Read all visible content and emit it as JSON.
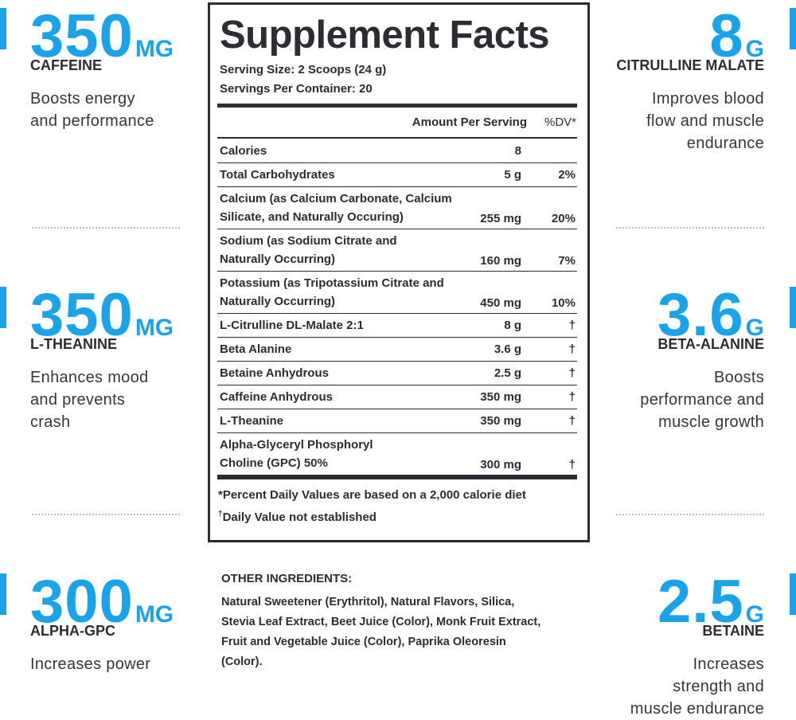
{
  "left_features": [
    {
      "amount": "350",
      "unit": "MG",
      "name": "CAFFEINE",
      "description": [
        "Boosts energy",
        "and performance"
      ]
    },
    {
      "amount": "350",
      "unit": "MG",
      "name": "L-THEANINE",
      "description": [
        "Enhances mood",
        "and prevents",
        "crash"
      ]
    },
    {
      "amount": "300",
      "unit": "MG",
      "name": "ALPHA-GPC",
      "description": [
        "Increases power"
      ]
    }
  ],
  "right_features": [
    {
      "amount": "8",
      "unit": "G",
      "name": "CITRULLINE MALATE",
      "description": [
        "Improves blood",
        "flow and muscle",
        "endurance"
      ]
    },
    {
      "amount": "3.6",
      "unit": "G",
      "name": "BETA-ALANINE",
      "description": [
        "Boosts",
        "performance and",
        "muscle growth"
      ]
    },
    {
      "amount": "2.5",
      "unit": "G",
      "name": "BETAINE",
      "description": [
        "Increases",
        "strength and",
        "muscle endurance"
      ]
    }
  ],
  "facts": {
    "title": "Supplement Facts",
    "serving_size": "Serving Size: 2 Scoops (24 g)",
    "servings_per_container": "Servings Per Container: 20",
    "header": {
      "amount": "Amount Per Serving",
      "dv": "%DV*"
    },
    "rows": [
      {
        "name": [
          "Calories"
        ],
        "amount": "8"
      },
      {
        "name": [
          "Total Carbohydrates"
        ],
        "amount": "5 g",
        "dv": "2%"
      },
      {
        "name": [
          "Calcium (as Calcium Carbonate, Calcium",
          "Silicate, and Naturally Occuring)"
        ],
        "amount": "255 mg",
        "dv": "20%"
      },
      {
        "name": [
          "Sodium (as Sodium Citrate and",
          "Naturally Occurring)"
        ],
        "amount": "160 mg",
        "dv": "7%"
      },
      {
        "name": [
          "Potassium (as Tripotassium Citrate and",
          "Naturally Occurring)"
        ],
        "amount": "450 mg",
        "dv": "10%"
      },
      {
        "name": [
          "L-Citrulline DL-Malate 2:1"
        ],
        "amount": "8 g",
        "dv": "†"
      },
      {
        "name": [
          "Beta Alanine"
        ],
        "amount": "3.6 g",
        "dv": "†"
      },
      {
        "name": [
          "Betaine Anhydrous"
        ],
        "amount": "2.5 g",
        "dv": "†"
      },
      {
        "name": [
          "Caffeine Anhydrous"
        ],
        "amount": "350 mg",
        "dv": "†"
      },
      {
        "name": [
          "L-Theanine"
        ],
        "amount": "350 mg",
        "dv": "†"
      },
      {
        "name": [
          "Alpha-Glyceryl Phosphoryl",
          "Choline (GPC) 50%"
        ],
        "amount": "300 mg",
        "dv": "†"
      }
    ],
    "footnote_dv": "*Percent Daily Values are based on a 2,000 calorie diet",
    "footnote_dagger": {
      "mark": "†",
      "text": "Daily Value not established"
    }
  },
  "other_ingredients": {
    "heading": "OTHER INGREDIENTS:",
    "lines": [
      "Natural Sweetener (Erythritol), Natural Flavors, Silica,",
      "Stevia Leaf Extract, Beet Juice (Color), Monk Fruit Extract,",
      "Fruit and Vegetable Juice (Color), Paprika Oleoresin",
      "(Color)."
    ]
  }
}
